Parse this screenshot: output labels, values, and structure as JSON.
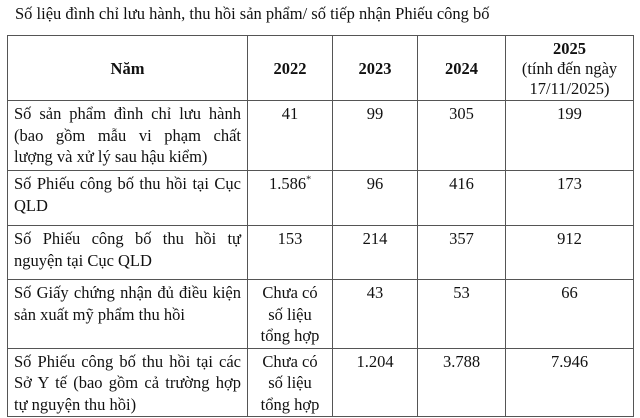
{
  "title": "Số liệu đình chỉ lưu hành, thu hồi sản phẩm/ số tiếp nhận Phiếu công bố",
  "header": {
    "label": "Năm",
    "years": [
      "2022",
      "2023",
      "2024"
    ],
    "y2025": "2025",
    "y2025_note": "(tính đến ngày 17/11/2025)"
  },
  "rows": [
    {
      "label": "Số sản phẩm đình chỉ lưu hành (bao gồm mẫu vi phạm chất lượng và xử lý sau hậu kiểm)",
      "values": [
        "41",
        "99",
        "305",
        "199"
      ]
    },
    {
      "label": "Số Phiếu công bố thu hồi tại Cục QLD",
      "values": [
        "1.586",
        "96",
        "416",
        "173"
      ],
      "footnote": "*"
    },
    {
      "label": "Số Phiếu công bố thu hồi tự nguyện tại Cục QLD",
      "values": [
        "153",
        "214",
        "357",
        "912"
      ]
    },
    {
      "label": "Số Giấy chứng nhận đủ điều kiện sản xuất mỹ phẩm thu hồi",
      "values": [
        "Chưa có số liệu tổng hợp",
        "43",
        "53",
        "66"
      ]
    },
    {
      "label": "Số Phiếu công bố thu hồi tại các Sở Y tế (bao gồm cả trường hợp tự nguyện thu hồi)",
      "values": [
        "Chưa có số liệu tổng hợp",
        "1.204",
        "3.788",
        "7.946"
      ]
    }
  ]
}
